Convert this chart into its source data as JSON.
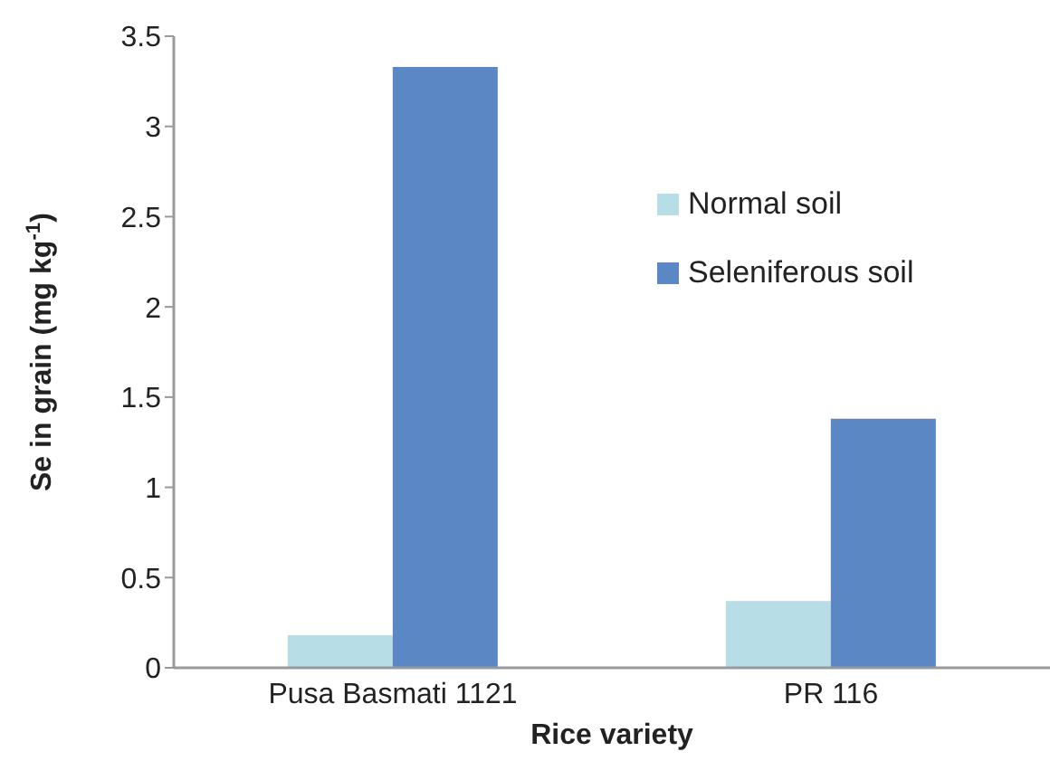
{
  "chart_data": {
    "type": "bar",
    "xlabel": "Rice variety",
    "ylabel": "Se in grain (mg kg$^{-1}$)",
    "categories": [
      "Pusa Basmati 1121",
      "PR 116"
    ],
    "series": [
      {
        "name": "Normal soil",
        "color": "#b7dde6",
        "values": [
          0.18,
          0.37
        ]
      },
      {
        "name": "Seleniferous soil",
        "color": "#5b88c5",
        "values": [
          3.33,
          1.38
        ]
      }
    ],
    "ylim": [
      0,
      3.5
    ],
    "yticks": [
      0,
      0.5,
      1,
      1.5,
      2,
      2.5,
      3,
      3.5
    ],
    "grid": false,
    "legend": "right"
  }
}
